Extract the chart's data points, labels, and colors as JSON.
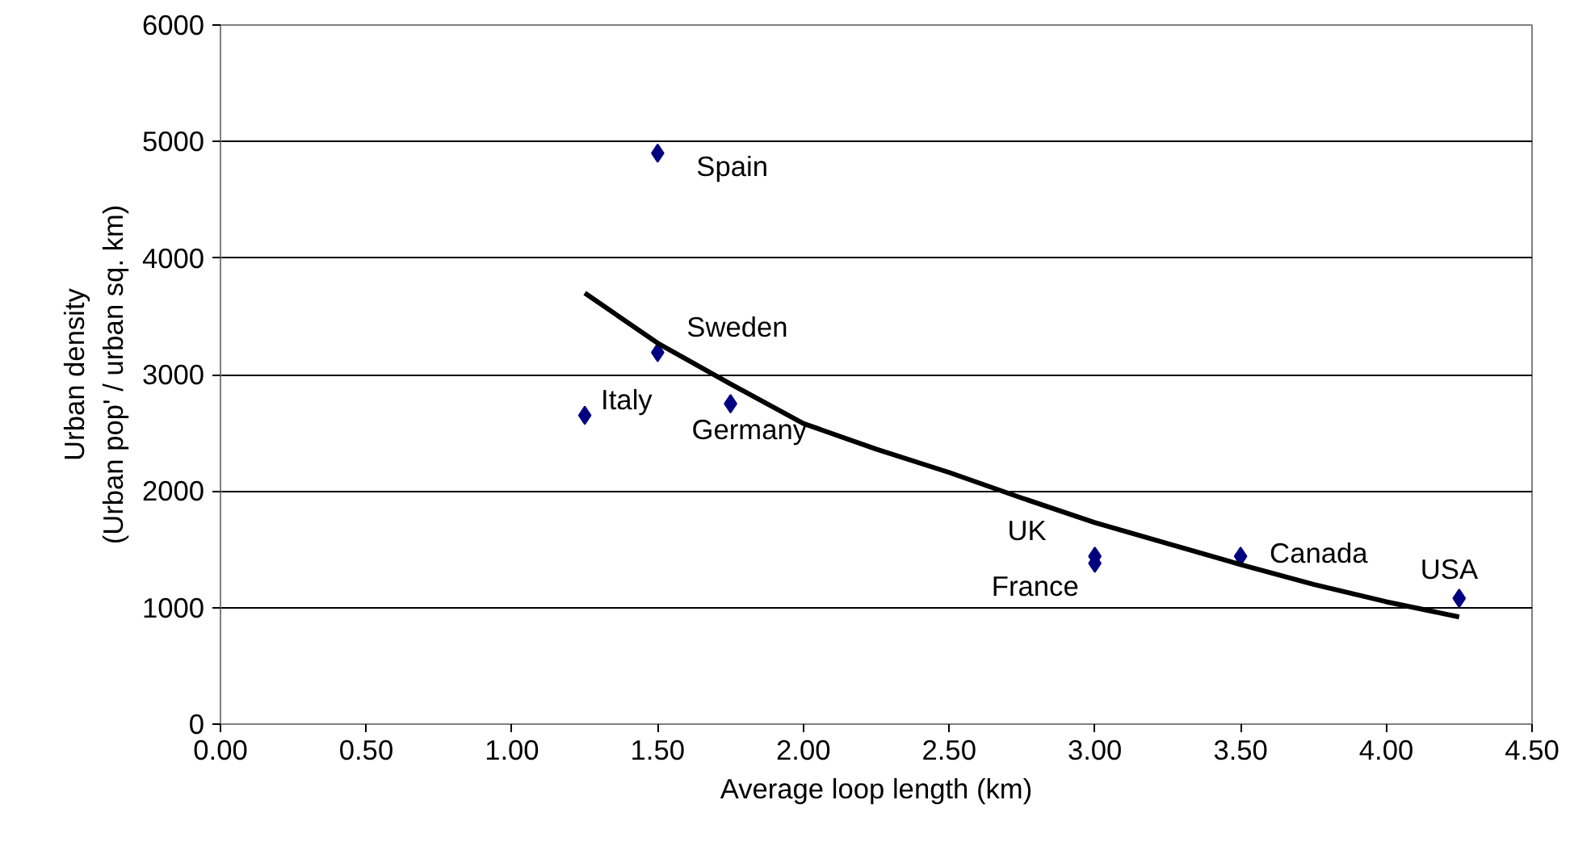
{
  "chart_data": {
    "type": "scatter",
    "xlabel": "Average loop length (km)",
    "ylabel": "Urban density\n(Urban pop' / urban sq. km)",
    "xlim": [
      0,
      4.5
    ],
    "xticks": [
      {
        "value": 0,
        "label": "0.00"
      },
      {
        "value": 0.5,
        "label": "0.50"
      },
      {
        "value": 1,
        "label": "1.00"
      },
      {
        "value": 1.5,
        "label": "1.50"
      },
      {
        "value": 2,
        "label": "2.00"
      },
      {
        "value": 2.5,
        "label": "2.50"
      },
      {
        "value": 3,
        "label": "3.00"
      },
      {
        "value": 3.5,
        "label": "3.50"
      },
      {
        "value": 4,
        "label": "4.00"
      },
      {
        "value": 4.5,
        "label": "4.50"
      }
    ],
    "ylim": [
      0,
      6000
    ],
    "yticks": [
      0,
      1000,
      2000,
      3000,
      4000,
      5000,
      6000
    ],
    "grid": "y",
    "marker": "diamond",
    "series": [
      {
        "color": "#000080",
        "x": [
          1.5,
          1.5,
          1.25,
          1.75,
          3.0,
          3.0,
          3.5,
          4.25
        ],
        "values": [
          4900,
          3190,
          2650,
          2750,
          1440,
          1380,
          1440,
          1080
        ]
      },
      {
        "type": "line",
        "marker": "none",
        "color": "#000000",
        "x": [
          1.25,
          1.5,
          1.75,
          2.0,
          2.25,
          2.5,
          2.75,
          3.0,
          3.25,
          3.5,
          3.75,
          4.0,
          4.25
        ],
        "values": [
          3700,
          3270,
          2920,
          2580,
          2360,
          2160,
          1940,
          1730,
          1550,
          1370,
          1200,
          1050,
          920
        ]
      }
    ],
    "annotations": [
      {
        "text": "Spain",
        "x": 1.5,
        "y": 4900
      },
      {
        "text": "Sweden",
        "x": 1.5,
        "y": 3190
      },
      {
        "text": "Italy",
        "x": 1.25,
        "y": 2650
      },
      {
        "text": "Germany",
        "x": 1.75,
        "y": 2750
      },
      {
        "text": "UK",
        "x": 3.0,
        "y": 1440
      },
      {
        "text": "France",
        "x": 3.0,
        "y": 1380
      },
      {
        "text": "Canada",
        "x": 3.5,
        "y": 1440
      },
      {
        "text": "USA",
        "x": 4.25,
        "y": 1080
      }
    ]
  }
}
